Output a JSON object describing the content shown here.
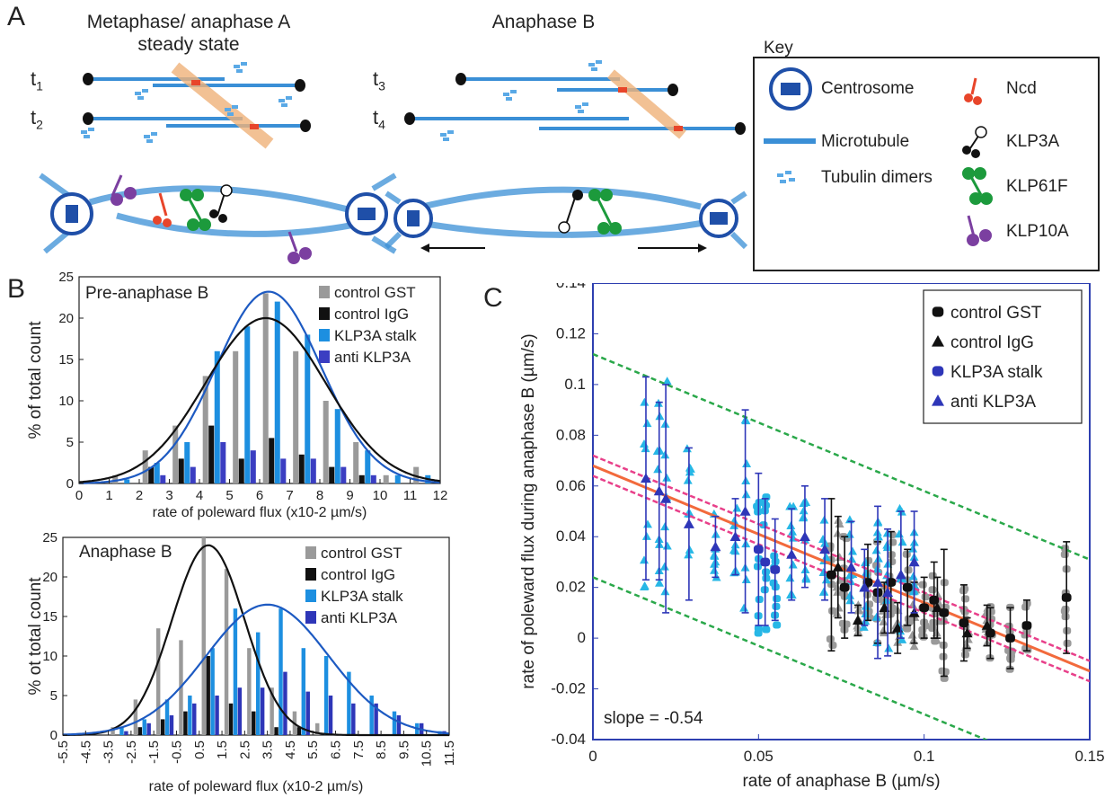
{
  "panel_a": {
    "label": "A",
    "heading_left_line1": "Metaphase/ anaphase A",
    "heading_left_line2": "steady state",
    "heading_right": "Anaphase B",
    "t1": "t",
    "t1_sub": "1",
    "t2": "t",
    "t2_sub": "2",
    "t3": "t",
    "t3_sub": "3",
    "t4": "t",
    "t4_sub": "4",
    "key": {
      "title": "Key",
      "centrosome": "Centrosome",
      "microtubule": "Microtubule",
      "tubulin": "Tubulin dimers",
      "ncd": "Ncd",
      "klp3a": "KLP3A",
      "klp61f": "KLP61F",
      "klp10a": "KLP10A"
    },
    "colors": {
      "microtubule": "#3a8fd6",
      "centrosome": "#1f4fa8",
      "ncd": "#e8452a",
      "klp3a": "#111111",
      "klp61f": "#1c9a3c",
      "klp10a": "#7b3fa0",
      "tubulin": "#5aa9e6",
      "poleward_band": "#f0b27a"
    }
  },
  "panel_b_label": "B",
  "panel_c_label": "C",
  "chart_data": [
    {
      "type": "bar",
      "panel": "B-top",
      "title": "Pre-anaphase B",
      "xlabel": "rate of poleward flux (x10-2 µm/s)",
      "ylabel": "% of total count",
      "xlim": [
        0,
        12
      ],
      "ylim": [
        0,
        25
      ],
      "xticks": [
        "0",
        "1",
        "2",
        "3",
        "4",
        "5",
        "6",
        "7",
        "8",
        "9",
        "10",
        "11",
        "12"
      ],
      "yticks": [
        "0",
        "5",
        "10",
        "15",
        "20",
        "25"
      ],
      "legend": "top-right",
      "x": [
        0.5,
        1.5,
        2.5,
        3.5,
        4.5,
        5.5,
        6.5,
        7.5,
        8.5,
        9.5,
        10.5,
        11.5
      ],
      "series": [
        {
          "name": "control GST",
          "color": "#9a9a9a",
          "values": [
            0.3,
            1,
            4,
            7,
            13,
            16,
            23,
            16,
            10,
            5,
            1,
            2
          ]
        },
        {
          "name": "control IgG",
          "color": "#111111",
          "values": [
            0,
            0,
            2,
            3,
            7,
            3,
            5.5,
            3.5,
            2,
            1,
            0,
            0
          ]
        },
        {
          "name": "KLP3A stalk",
          "color": "#1d8fe0",
          "values": [
            0,
            0.5,
            2.5,
            5,
            16,
            19,
            22,
            18,
            9,
            4,
            1,
            1
          ]
        },
        {
          "name": "anti KLP3A",
          "color": "#3b3ec2",
          "values": [
            0,
            0,
            1,
            2,
            5,
            4,
            3,
            3,
            2,
            1,
            0,
            0
          ]
        }
      ],
      "fits": [
        {
          "color": "#1d5ac2",
          "mean": 6.3,
          "sd": 1.75,
          "peak": 23.2
        },
        {
          "color": "#111111",
          "mean": 6.2,
          "sd": 2.0,
          "peak": 20.0
        }
      ]
    },
    {
      "type": "bar",
      "panel": "B-bottom",
      "title": "Anaphase B",
      "xlabel": "rate of poleward flux (x10-2 µm/s)",
      "ylabel": "% ot total count",
      "xlim": [
        -5.5,
        11.5
      ],
      "ylim": [
        0,
        25
      ],
      "xticks": [
        "-5.5",
        "-4.5",
        "-3.5",
        "-2.5",
        "-1.5",
        "-0.5",
        "0.5",
        "1.5",
        "2.5",
        "3.5",
        "4.5",
        "5.5",
        "6.5",
        "7.5",
        "8.5",
        "9.5",
        "10.5",
        "11.5"
      ],
      "yticks": [
        "0",
        "5",
        "10",
        "15",
        "20",
        "25"
      ],
      "legend": "top-right",
      "x": [
        -5,
        -4,
        -3,
        -2,
        -1,
        0,
        1,
        2,
        3,
        4,
        5,
        6,
        7,
        8,
        9,
        10,
        11
      ],
      "series": [
        {
          "name": "control GST",
          "color": "#9a9a9a",
          "values": [
            0,
            0,
            1,
            4.5,
            13.5,
            12,
            25,
            21,
            11,
            6,
            3,
            1.5,
            0,
            0,
            0,
            0,
            0
          ]
        },
        {
          "name": "control IgG",
          "color": "#111111",
          "values": [
            0,
            0,
            0,
            1,
            2,
            3,
            10,
            4,
            3,
            1,
            1,
            0,
            0,
            0,
            0,
            0,
            0
          ]
        },
        {
          "name": "KLP3A stalk",
          "color": "#1d8fe0",
          "values": [
            0,
            0,
            1,
            2,
            4.5,
            5,
            11,
            16,
            13,
            16,
            11,
            10,
            8,
            5,
            3,
            1.5,
            0.5
          ]
        },
        {
          "name": "anti KLP3A",
          "color": "#2e36b8",
          "values": [
            0,
            0,
            0.5,
            1.5,
            2.5,
            4,
            5,
            6,
            6,
            8,
            5.5,
            5,
            4,
            4,
            2.5,
            1.5,
            0.5
          ]
        }
      ],
      "fits": [
        {
          "color": "#111111",
          "mean": 0.9,
          "sd": 1.6,
          "peak": 24.0
        },
        {
          "color": "#1d5ac2",
          "mean": 3.5,
          "sd": 2.7,
          "peak": 16.5
        }
      ]
    },
    {
      "type": "scatter",
      "panel": "C",
      "xlabel": "rate of anaphase B (µm/s)",
      "ylabel": "rate of poleward flux during anaphase B (µm/s)",
      "xlim": [
        0,
        0.15
      ],
      "ylim": [
        -0.04,
        0.14
      ],
      "xticks": [
        "0",
        "0.05",
        "0.1",
        "0.15"
      ],
      "yticks": [
        "-0.04",
        "-0.02",
        "0",
        "0.02",
        "0.04",
        "0.06",
        "0.08",
        "0.1",
        "0.12",
        "0.14"
      ],
      "legend": "top-right",
      "annotation": "slope = -0.54",
      "regression": {
        "color": "#f26a3c",
        "intercept": 0.068,
        "slope": -0.54
      },
      "confidence_band": {
        "color": "#e8408a",
        "width": 0.004
      },
      "prediction_band": {
        "color": "#2aa84a",
        "width": 0.044
      },
      "series": [
        {
          "name": "control GST",
          "marker": "circle",
          "color": "#111111",
          "point_color": "#9a9a9a",
          "x": [
            0.072,
            0.076,
            0.083,
            0.086,
            0.09,
            0.095,
            0.1,
            0.103,
            0.106,
            0.112,
            0.12,
            0.126,
            0.131,
            0.143
          ],
          "mean": [
            0.025,
            0.02,
            0.022,
            0.018,
            0.022,
            0.02,
            0.012,
            0.015,
            0.01,
            0.006,
            0.002,
            0.0,
            0.005,
            0.016
          ],
          "sd": [
            0.03,
            0.02,
            0.015,
            0.02,
            0.02,
            0.015,
            0.012,
            0.015,
            0.025,
            0.015,
            0.01,
            0.012,
            0.01,
            0.022
          ]
        },
        {
          "name": "control IgG",
          "marker": "triangle",
          "color": "#111111",
          "point_color": "#9a9a9a",
          "x": [
            0.074,
            0.08,
            0.088,
            0.092,
            0.097,
            0.104,
            0.113,
            0.119
          ],
          "mean": [
            0.028,
            0.007,
            0.012,
            0.004,
            0.01,
            0.012,
            0.002,
            0.005
          ],
          "sd": [
            0.02,
            0.006,
            0.01,
            0.01,
            0.012,
            0.012,
            0.006,
            0.008
          ]
        },
        {
          "name": "KLP3A stalk",
          "marker": "circle",
          "color": "#2e36b8",
          "point_color": "#27b7e6",
          "x": [
            0.05,
            0.052,
            0.055
          ],
          "mean": [
            0.035,
            0.03,
            0.027
          ],
          "sd": [
            0.03,
            0.025,
            0.02
          ]
        },
        {
          "name": "anti KLP3A",
          "marker": "triangle",
          "color": "#2e36b8",
          "point_color": "#27b7e6",
          "x": [
            0.016,
            0.02,
            0.022,
            0.029,
            0.037,
            0.043,
            0.046,
            0.06,
            0.064,
            0.07,
            0.078,
            0.082,
            0.086,
            0.089,
            0.093,
            0.097
          ],
          "mean": [
            0.063,
            0.058,
            0.055,
            0.045,
            0.036,
            0.04,
            0.05,
            0.033,
            0.04,
            0.035,
            0.028,
            0.02,
            0.022,
            0.018,
            0.025,
            0.03
          ],
          "sd": [
            0.04,
            0.035,
            0.045,
            0.03,
            0.012,
            0.015,
            0.04,
            0.018,
            0.02,
            0.02,
            0.018,
            0.015,
            0.03,
            0.025,
            0.025,
            0.02
          ]
        }
      ]
    }
  ]
}
